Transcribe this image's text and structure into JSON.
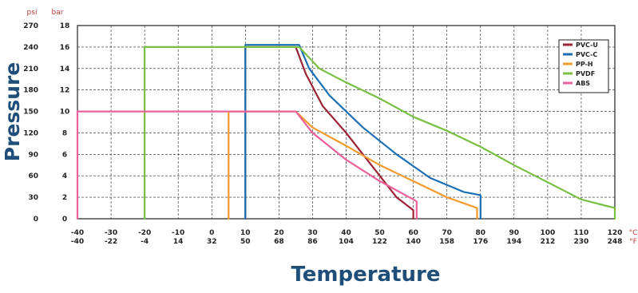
{
  "chart_data": {
    "type": "line",
    "xlabel": "Temperature",
    "ylabel": "Pressure",
    "x_unit_c": "°C",
    "x_unit_f": "°F",
    "y_unit_psi": "psi",
    "y_unit_bar": "bar",
    "xlim": [
      -40,
      120
    ],
    "ylim": [
      0,
      18
    ],
    "x_ticks_c": [
      "-40",
      "-30",
      "-20",
      "-10",
      "0",
      "10",
      "20",
      "30",
      "40",
      "50",
      "60",
      "70",
      "80",
      "90",
      "100",
      "110",
      "120"
    ],
    "x_ticks_f": [
      "-40",
      "-22",
      "-4",
      "14",
      "32",
      "50",
      "68",
      "86",
      "104",
      "122",
      "140",
      "158",
      "176",
      "194",
      "212",
      "230",
      "248"
    ],
    "y_ticks_bar": [
      "0",
      "2",
      "4",
      "6",
      "8",
      "10",
      "12",
      "14",
      "16",
      "18"
    ],
    "y_ticks_psi": [
      "0",
      "30",
      "60",
      "90",
      "120",
      "150",
      "180",
      "210",
      "240",
      "270"
    ],
    "grid": true,
    "legend_position": "top-right",
    "series": [
      {
        "name": "PVC-U",
        "color": "#9b2335",
        "points": [
          [
            10,
            0
          ],
          [
            10,
            16
          ],
          [
            25,
            16
          ],
          [
            28,
            13.5
          ],
          [
            33,
            10.5
          ],
          [
            40,
            8
          ],
          [
            45,
            6
          ],
          [
            50,
            4
          ],
          [
            55,
            2
          ],
          [
            60,
            0.8
          ],
          [
            60,
            0
          ]
        ]
      },
      {
        "name": "PVC-C",
        "color": "#1a6fb5",
        "points": [
          [
            10,
            0
          ],
          [
            10,
            16.2
          ],
          [
            26,
            16.2
          ],
          [
            29,
            14
          ],
          [
            35,
            11.5
          ],
          [
            45,
            8.5
          ],
          [
            55,
            6
          ],
          [
            65,
            3.8
          ],
          [
            75,
            2.5
          ],
          [
            80,
            2.2
          ],
          [
            80,
            0
          ]
        ]
      },
      {
        "name": "PP-H",
        "color": "#f39a2c",
        "points": [
          [
            5,
            0
          ],
          [
            5,
            10
          ],
          [
            25,
            10
          ],
          [
            30,
            8.5
          ],
          [
            40,
            6.8
          ],
          [
            50,
            5
          ],
          [
            60,
            3.5
          ],
          [
            70,
            2
          ],
          [
            79,
            1
          ],
          [
            79,
            0
          ]
        ]
      },
      {
        "name": "PVDF",
        "color": "#77c043",
        "points": [
          [
            -20,
            0
          ],
          [
            -20,
            16
          ],
          [
            26,
            16
          ],
          [
            32,
            14
          ],
          [
            40,
            12.7
          ],
          [
            50,
            11.2
          ],
          [
            60,
            9.5
          ],
          [
            70,
            8.2
          ],
          [
            80,
            6.7
          ],
          [
            90,
            5
          ],
          [
            100,
            3.4
          ],
          [
            110,
            1.8
          ],
          [
            120,
            1
          ],
          [
            120,
            0
          ]
        ]
      },
      {
        "name": "ABS",
        "color": "#e9609a",
        "points": [
          [
            -40,
            0
          ],
          [
            -40,
            10
          ],
          [
            25,
            10
          ],
          [
            30,
            8
          ],
          [
            40,
            5.5
          ],
          [
            50,
            3.5
          ],
          [
            60,
            1.8
          ],
          [
            61,
            1.6
          ],
          [
            61,
            0
          ]
        ]
      }
    ]
  }
}
